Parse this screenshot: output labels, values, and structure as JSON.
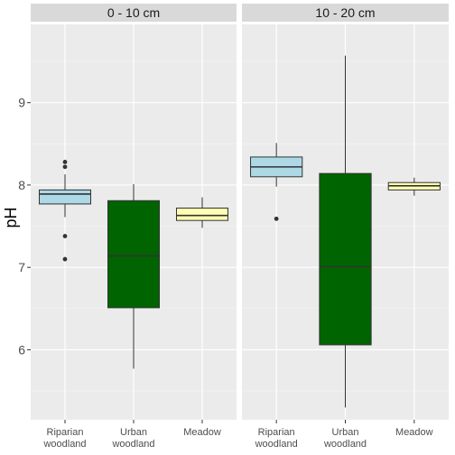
{
  "chart_data": {
    "type": "boxplot",
    "ylabel": "pH",
    "xlabel": "",
    "ylim": [
      5.15,
      9.95
    ],
    "yticks": [
      6,
      7,
      8,
      9
    ],
    "categories": [
      {
        "line1": "Riparian",
        "line2": "woodland",
        "color": "#add8e6"
      },
      {
        "line1": "Urban",
        "line2": "woodland",
        "color": "#006400"
      },
      {
        "line1": "Meadow",
        "line2": "",
        "color": "#ffffb3"
      }
    ],
    "panels": [
      {
        "strip": "0 - 10 cm",
        "boxes": [
          {
            "q1": 7.77,
            "median": 7.89,
            "q3": 7.94,
            "whisker_low": 7.61,
            "whisker_high": 8.13,
            "outliers": [
              8.28,
              8.22,
              7.38,
              7.1
            ]
          },
          {
            "q1": 6.51,
            "median": 7.14,
            "q3": 7.81,
            "whisker_low": 5.77,
            "whisker_high": 8.01,
            "outliers": []
          },
          {
            "q1": 7.57,
            "median": 7.63,
            "q3": 7.72,
            "whisker_low": 7.48,
            "whisker_high": 7.85,
            "outliers": []
          }
        ]
      },
      {
        "strip": "10 - 20 cm",
        "boxes": [
          {
            "q1": 8.1,
            "median": 8.22,
            "q3": 8.34,
            "whisker_low": 7.98,
            "whisker_high": 8.51,
            "outliers": [
              7.59
            ]
          },
          {
            "q1": 6.06,
            "median": 7.01,
            "q3": 8.14,
            "whisker_low": 5.3,
            "whisker_high": 9.57,
            "outliers": []
          },
          {
            "q1": 7.94,
            "median": 7.99,
            "q3": 8.03,
            "whisker_low": 7.87,
            "whisker_high": 8.09,
            "outliers": []
          }
        ]
      }
    ],
    "grid": true
  }
}
